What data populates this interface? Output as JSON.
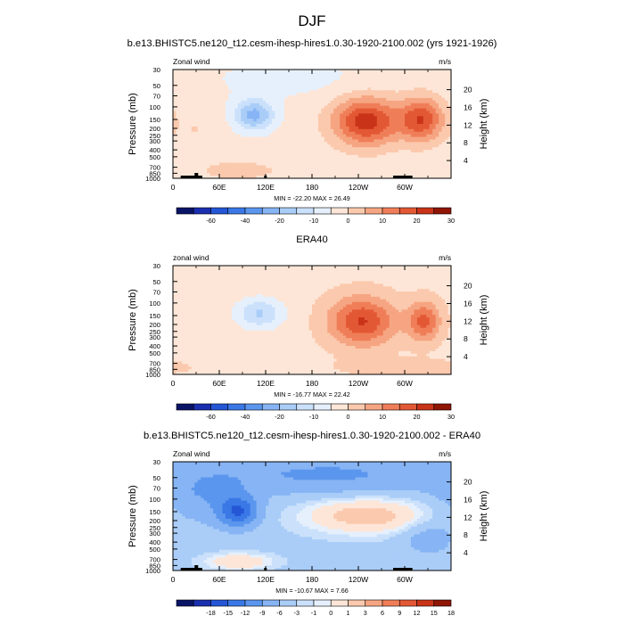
{
  "figure_title": "DJF",
  "chart_data": [
    {
      "type": "heatmap",
      "title": "b.e13.BHISTC5.ne120_t12.cesm-ihesp-hires1.0.30-1920-2100.002 (yrs 1921-1926)",
      "left_label": "Zonal wind",
      "right_label": "m/s",
      "ylabel": "Pressure (mb)",
      "ylabel_right": "Height (km)",
      "xticks": [
        "0",
        "60E",
        "120E",
        "180",
        "120W",
        "60W"
      ],
      "x_values": [
        0,
        60,
        120,
        180,
        240,
        300
      ],
      "xlim": [
        0,
        360
      ],
      "yticks": [
        "30",
        "50",
        "70",
        "100",
        "150",
        "200",
        "250",
        "300",
        "400",
        "500",
        "700",
        "850",
        "1000"
      ],
      "p_values": [
        30,
        50,
        70,
        100,
        150,
        200,
        250,
        300,
        400,
        500,
        700,
        850,
        1000
      ],
      "ylim": [
        1000,
        30
      ],
      "height_ticks": [
        "4",
        "8",
        "12",
        "16",
        "20"
      ],
      "height_values": [
        4,
        8,
        12,
        16,
        20
      ],
      "stats": "MIN = -22.20   MAX =  26.49",
      "min": -22.2,
      "max": 26.49,
      "colorbar": {
        "levels": [
          -70,
          -60,
          -50,
          -40,
          -30,
          -20,
          -15,
          -10,
          -5,
          0,
          5,
          10,
          15,
          20,
          25,
          30
        ],
        "labels": [
          "-60",
          "-40",
          "-20",
          "-10",
          "0",
          "10",
          "20",
          "30"
        ],
        "label_levels": [
          -60,
          -40,
          -20,
          -10,
          0,
          10,
          20,
          30
        ]
      },
      "features": [
        {
          "kind": "jet",
          "lon": 250,
          "p": 160,
          "value": 26
        },
        {
          "kind": "jet",
          "lon": 322,
          "p": 150,
          "value": 22
        },
        {
          "kind": "easterly",
          "lon": 105,
          "p": 130,
          "value": -19
        },
        {
          "kind": "surface-westerly",
          "lon": 85,
          "p": 780,
          "value": 8
        }
      ]
    },
    {
      "type": "heatmap",
      "title": "ERA40",
      "left_label": "zonal wind",
      "right_label": "m/s",
      "ylabel": "Pressure (mb)",
      "ylabel_right": "Height (km)",
      "xticks": [
        "0",
        "60E",
        "120E",
        "180",
        "120W",
        "60W"
      ],
      "x_values": [
        0,
        60,
        120,
        180,
        240,
        300
      ],
      "xlim": [
        0,
        360
      ],
      "yticks": [
        "30",
        "50",
        "70",
        "100",
        "150",
        "200",
        "250",
        "300",
        "400",
        "500",
        "700",
        "850",
        "1000"
      ],
      "p_values": [
        30,
        50,
        70,
        100,
        150,
        200,
        250,
        300,
        400,
        500,
        700,
        850,
        1000
      ],
      "ylim": [
        1000,
        30
      ],
      "height_ticks": [
        "4",
        "8",
        "12",
        "16",
        "20"
      ],
      "height_values": [
        4,
        8,
        12,
        16,
        20
      ],
      "stats": "MIN = -16.77  MAX =  22.42",
      "min": -16.77,
      "max": 22.42,
      "colorbar": {
        "levels": [
          -70,
          -60,
          -50,
          -40,
          -30,
          -20,
          -15,
          -10,
          -5,
          0,
          5,
          10,
          15,
          20,
          25,
          30
        ],
        "labels": [
          "-60",
          "-40",
          "-20",
          "-10",
          "0",
          "10",
          "20",
          "30"
        ],
        "label_levels": [
          -60,
          -40,
          -20,
          -10,
          0,
          10,
          20,
          30
        ]
      },
      "features": [
        {
          "kind": "jet",
          "lon": 245,
          "p": 180,
          "value": 22
        },
        {
          "kind": "jet",
          "lon": 325,
          "p": 180,
          "value": 18
        },
        {
          "kind": "easterly",
          "lon": 112,
          "p": 140,
          "value": -14
        }
      ]
    },
    {
      "type": "heatmap",
      "title": "b.e13.BHISTC5.ne120_t12.cesm-ihesp-hires1.0.30-1920-2100.002 - ERA40",
      "left_label": "Zonal wind",
      "right_label": "m/s",
      "ylabel": "Pressure (mb)",
      "ylabel_right": "Height (km)",
      "xticks": [
        "0",
        "60E",
        "120E",
        "180",
        "120W",
        "60W"
      ],
      "x_values": [
        0,
        60,
        120,
        180,
        240,
        300
      ],
      "xlim": [
        0,
        360
      ],
      "yticks": [
        "30",
        "50",
        "70",
        "100",
        "150",
        "200",
        "250",
        "300",
        "400",
        "500",
        "700",
        "850",
        "1000"
      ],
      "p_values": [
        30,
        50,
        70,
        100,
        150,
        200,
        250,
        300,
        400,
        500,
        700,
        850,
        1000
      ],
      "ylim": [
        1000,
        30
      ],
      "height_ticks": [
        "4",
        "8",
        "12",
        "16",
        "20"
      ],
      "height_values": [
        4,
        8,
        12,
        16,
        20
      ],
      "stats": "MIN = -10.67  MAX =  7.66",
      "min": -10.67,
      "max": 7.66,
      "colorbar": {
        "levels": [
          -21,
          -18,
          -15,
          -12,
          -9,
          -6,
          -3,
          -1,
          0,
          1,
          3,
          6,
          9,
          12,
          15,
          18
        ],
        "labels": [
          "-18",
          "-15",
          "-12",
          "-9",
          "-6",
          "-3",
          "-1",
          "0",
          "1",
          "3",
          "6",
          "9",
          "12",
          "15",
          "18"
        ],
        "label_levels": [
          -18,
          -15,
          -12,
          -9,
          -6,
          -3,
          -1,
          0,
          1,
          3,
          6,
          9,
          12,
          15,
          18
        ]
      },
      "features": [
        {
          "kind": "negative-core",
          "lon": 85,
          "p": 150,
          "value": -10
        },
        {
          "kind": "positive-band",
          "lon": 250,
          "p": 170,
          "value": 7
        },
        {
          "kind": "surface-positive",
          "lon": 85,
          "p": 750,
          "value": 5
        },
        {
          "kind": "upper-negative",
          "lon": 200,
          "p": 45,
          "value": -5
        }
      ]
    }
  ]
}
